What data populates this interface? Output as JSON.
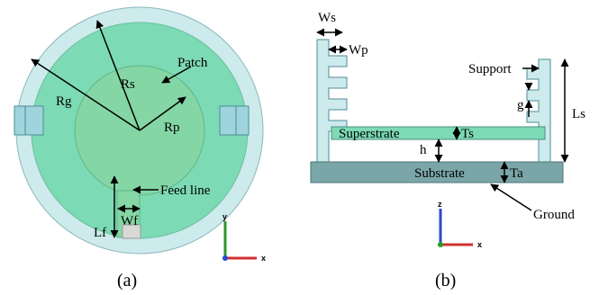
{
  "figure_a": {
    "labels": {
      "rs": "Rs",
      "patch": "Patch",
      "rg": "Rg",
      "rp": "Rp",
      "feed_line": "Feed line",
      "lf": "Lf",
      "wf": "Wf"
    },
    "axes": {
      "vertical": "y",
      "horizontal": "x"
    },
    "caption": "(a)"
  },
  "figure_b": {
    "labels": {
      "ws": "Ws",
      "wp": "Wp",
      "support": "Support",
      "g": "g",
      "ls": "Ls",
      "superstrate": "Superstrate",
      "ts": "Ts",
      "h": "h",
      "substrate": "Substrate",
      "ta": "Ta",
      "ground": "Ground"
    },
    "axes": {
      "vertical": "z",
      "horizontal": "x"
    },
    "caption": "(b)"
  }
}
